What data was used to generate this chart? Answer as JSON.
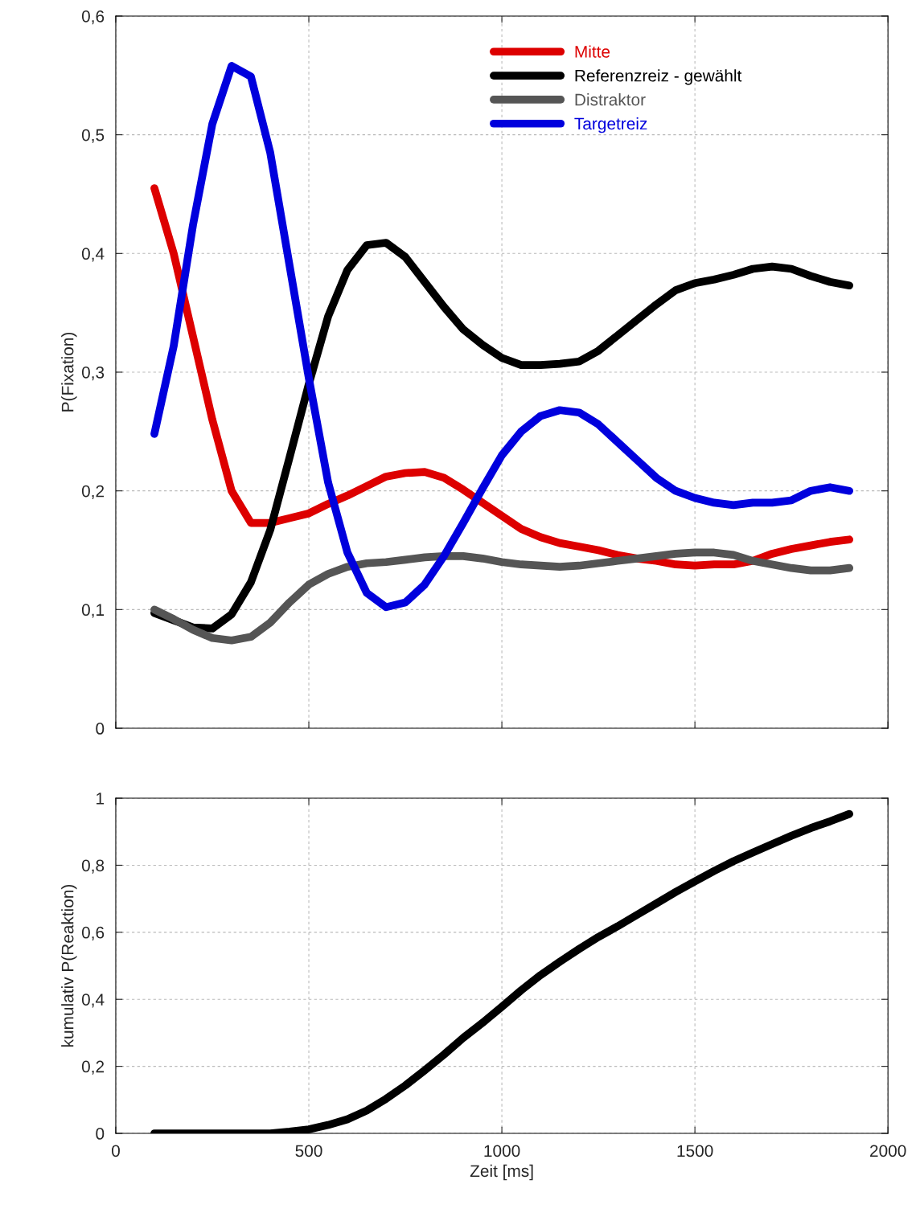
{
  "chart_data": [
    {
      "type": "line",
      "ylabel": "P(Fixation)",
      "x": [
        100,
        150,
        200,
        250,
        300,
        350,
        400,
        450,
        500,
        550,
        600,
        650,
        700,
        750,
        800,
        850,
        900,
        950,
        1000,
        1050,
        1100,
        1150,
        1200,
        1250,
        1300,
        1350,
        1400,
        1450,
        1500,
        1550,
        1600,
        1650,
        1700,
        1750,
        1800,
        1850,
        1900
      ],
      "xlim": [
        0,
        2000
      ],
      "xticks": [
        0,
        500,
        1000,
        1500,
        2000
      ],
      "ylim": [
        0,
        0.6
      ],
      "yticks": [
        {
          "value": 0,
          "label": "0"
        },
        {
          "value": 0.1,
          "label": "0,1"
        },
        {
          "value": 0.2,
          "label": "0,2"
        },
        {
          "value": 0.3,
          "label": "0,3"
        },
        {
          "value": 0.4,
          "label": "0,4"
        },
        {
          "value": 0.5,
          "label": "0,5"
        },
        {
          "value": 0.6,
          "label": "0,6"
        }
      ],
      "tick_labels": "y",
      "grid": true,
      "legend": "top",
      "line_style": "solid",
      "marker": "none",
      "series": [
        {
          "name": "Mitte",
          "color": "#dd0000",
          "values": [
            0.455,
            0.4,
            0.33,
            0.26,
            0.2,
            0.173,
            0.173,
            0.177,
            0.181,
            0.189,
            0.196,
            0.204,
            0.212,
            0.215,
            0.216,
            0.211,
            0.201,
            0.19,
            0.179,
            0.168,
            0.161,
            0.156,
            0.153,
            0.15,
            0.146,
            0.143,
            0.141,
            0.138,
            0.137,
            0.138,
            0.138,
            0.141,
            0.147,
            0.151,
            0.154,
            0.157,
            0.159
          ]
        },
        {
          "name": "Referenzreiz - gewählt",
          "color": "#000000",
          "values": [
            0.097,
            0.091,
            0.085,
            0.084,
            0.096,
            0.123,
            0.167,
            0.228,
            0.29,
            0.347,
            0.386,
            0.407,
            0.409,
            0.397,
            0.376,
            0.355,
            0.336,
            0.323,
            0.312,
            0.306,
            0.306,
            0.307,
            0.309,
            0.318,
            0.331,
            0.344,
            0.357,
            0.369,
            0.375,
            0.378,
            0.382,
            0.387,
            0.389,
            0.387,
            0.381,
            0.376,
            0.373
          ]
        },
        {
          "name": "Distraktor",
          "color": "#555555",
          "values": [
            0.1,
            0.092,
            0.083,
            0.076,
            0.074,
            0.077,
            0.089,
            0.106,
            0.121,
            0.13,
            0.136,
            0.139,
            0.14,
            0.142,
            0.144,
            0.145,
            0.145,
            0.143,
            0.14,
            0.138,
            0.137,
            0.136,
            0.137,
            0.139,
            0.141,
            0.143,
            0.145,
            0.147,
            0.148,
            0.148,
            0.146,
            0.141,
            0.138,
            0.135,
            0.133,
            0.133,
            0.135
          ]
        },
        {
          "name": "Targetreiz",
          "color": "#0000dd",
          "values": [
            0.248,
            0.322,
            0.424,
            0.509,
            0.558,
            0.549,
            0.485,
            0.39,
            0.295,
            0.207,
            0.148,
            0.114,
            0.102,
            0.106,
            0.121,
            0.145,
            0.173,
            0.202,
            0.23,
            0.25,
            0.263,
            0.268,
            0.266,
            0.256,
            0.241,
            0.226,
            0.211,
            0.2,
            0.194,
            0.19,
            0.188,
            0.19,
            0.19,
            0.192,
            0.2,
            0.203,
            0.2
          ]
        }
      ]
    },
    {
      "type": "line",
      "xlabel": "Zeit [ms]",
      "ylabel": "kumulativ P(Reaktion)",
      "x": [
        100,
        150,
        200,
        250,
        300,
        350,
        400,
        450,
        500,
        550,
        600,
        650,
        700,
        750,
        800,
        850,
        900,
        950,
        1000,
        1050,
        1100,
        1150,
        1200,
        1250,
        1300,
        1350,
        1400,
        1450,
        1500,
        1550,
        1600,
        1650,
        1700,
        1750,
        1800,
        1850,
        1900
      ],
      "xlim": [
        0,
        2000
      ],
      "xticks": [
        0,
        500,
        1000,
        1500,
        2000
      ],
      "ylim": [
        0,
        1
      ],
      "yticks": [
        {
          "value": 0,
          "label": "0"
        },
        {
          "value": 0.2,
          "label": "0,2"
        },
        {
          "value": 0.4,
          "label": "0,4"
        },
        {
          "value": 0.6,
          "label": "0,6"
        },
        {
          "value": 0.8,
          "label": "0,8"
        },
        {
          "value": 1,
          "label": "1"
        }
      ],
      "grid": true,
      "line_style": "solid",
      "marker": "none",
      "series": [
        {
          "color": "#000000",
          "values": [
            0,
            0,
            0,
            0,
            0,
            0,
            0,
            0.005,
            0.012,
            0.025,
            0.042,
            0.068,
            0.103,
            0.143,
            0.188,
            0.235,
            0.285,
            0.33,
            0.378,
            0.427,
            0.472,
            0.512,
            0.55,
            0.586,
            0.618,
            0.652,
            0.686,
            0.72,
            0.752,
            0.783,
            0.812,
            0.838,
            0.863,
            0.888,
            0.911,
            0.931,
            0.953
          ]
        }
      ]
    }
  ]
}
